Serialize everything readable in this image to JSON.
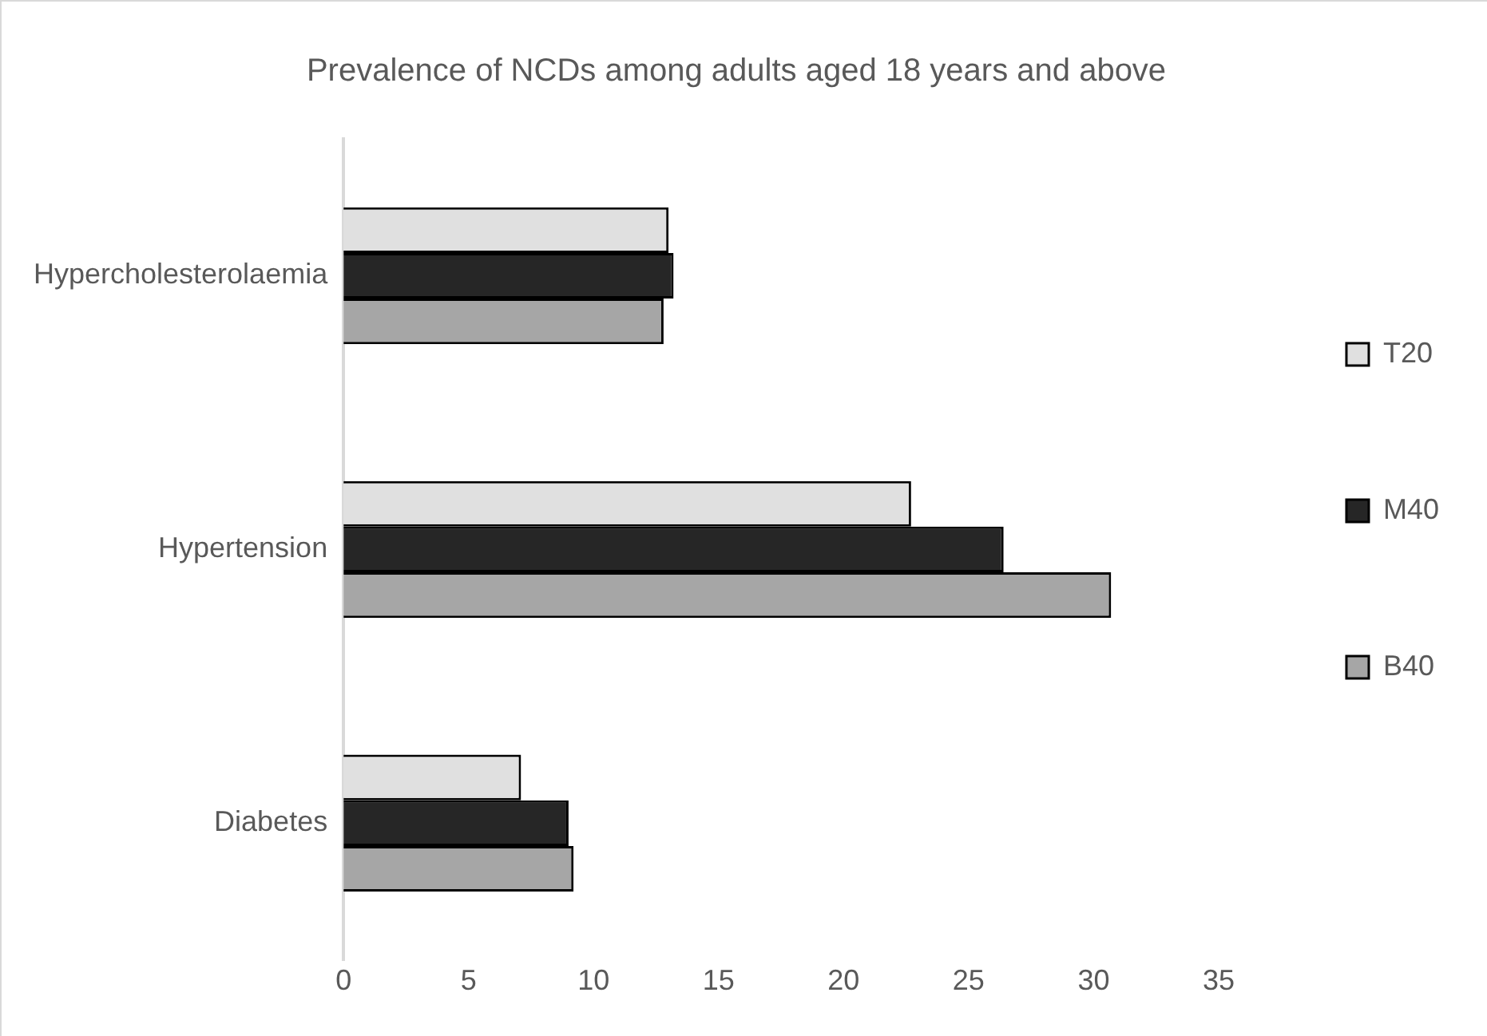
{
  "chart_data": {
    "type": "bar",
    "orientation": "horizontal",
    "title": "Prevalence of NCDs among adults aged 18 years and above",
    "categories": [
      "Hypercholesterolaemia",
      "Hypertension",
      "Diabetes"
    ],
    "series": [
      {
        "name": "T20",
        "color": "#e0e0e0",
        "values": [
          13.0,
          22.7,
          7.1
        ]
      },
      {
        "name": "M40",
        "color": "#262626",
        "values": [
          13.2,
          26.4,
          9.0
        ]
      },
      {
        "name": "B40",
        "color": "#a6a6a6",
        "values": [
          12.8,
          30.7,
          9.2
        ]
      }
    ],
    "xlim": [
      0,
      35
    ],
    "xticks": [
      0,
      5,
      10,
      15,
      20,
      25,
      30,
      35
    ],
    "grid": false,
    "legend": "right"
  }
}
